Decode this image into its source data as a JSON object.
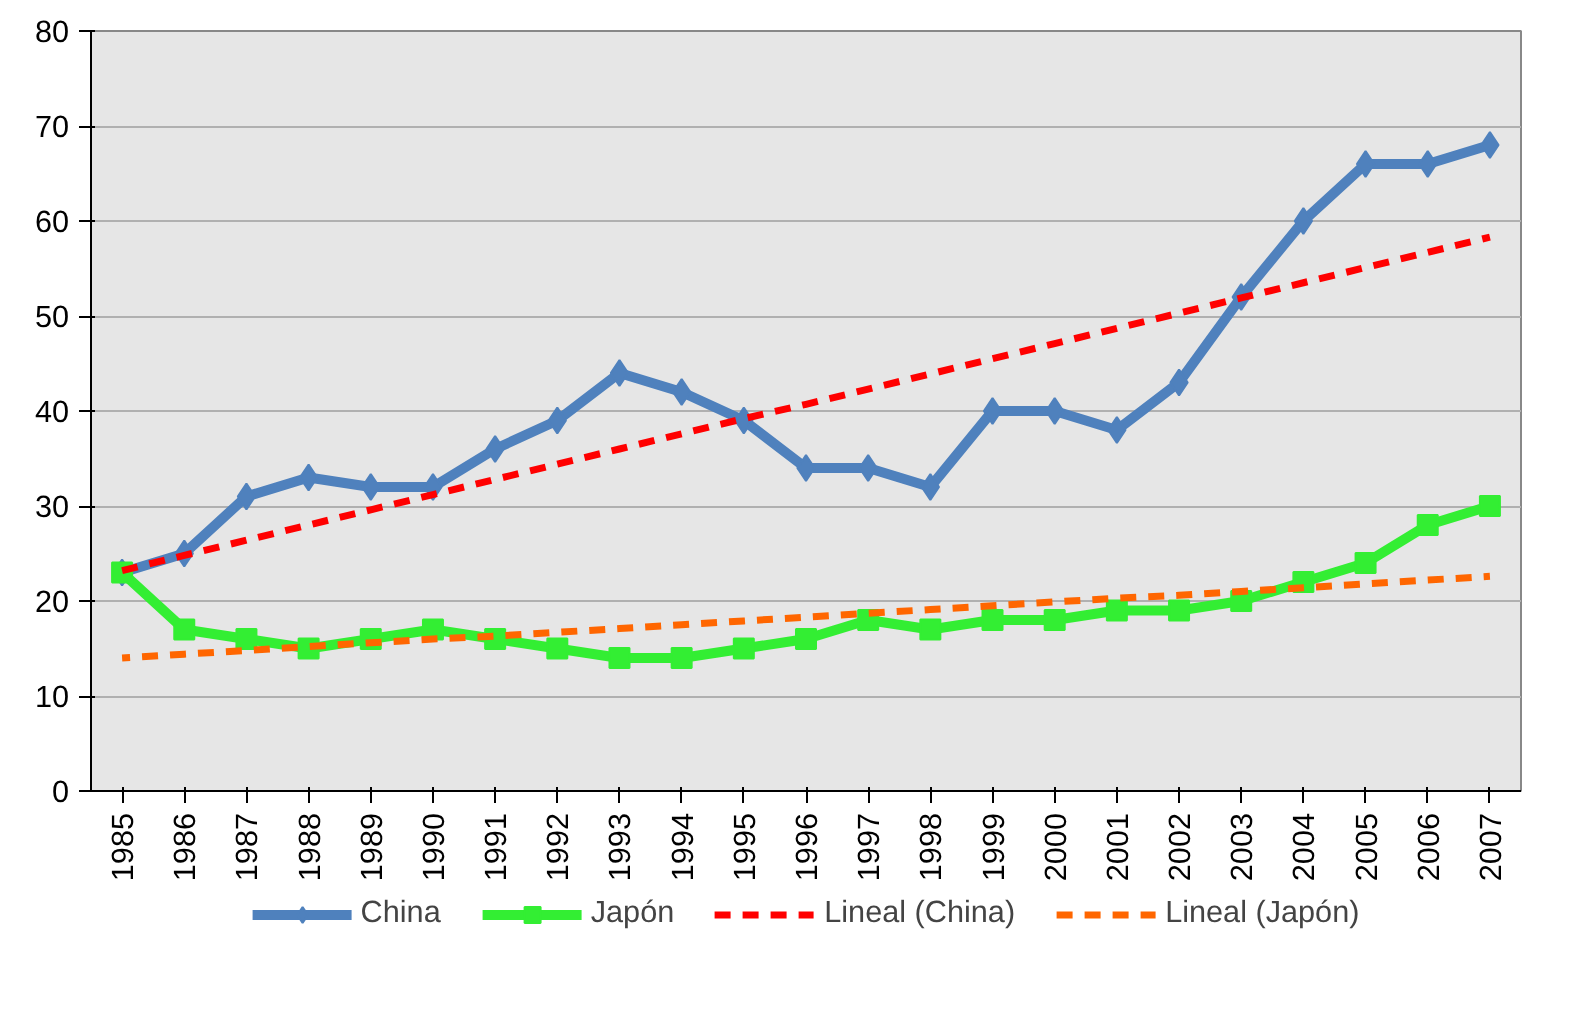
{
  "chart_data": {
    "type": "line",
    "categories": [
      "1985",
      "1986",
      "1987",
      "1988",
      "1989",
      "1990",
      "1991",
      "1992",
      "1993",
      "1994",
      "1995",
      "1996",
      "1997",
      "1998",
      "1999",
      "2000",
      "2001",
      "2002",
      "2003",
      "2004",
      "2005",
      "2006",
      "2007"
    ],
    "ylim": [
      0,
      80
    ],
    "yticks": [
      0,
      10,
      20,
      30,
      40,
      50,
      60,
      70,
      80
    ],
    "grid": "y",
    "legend": "bottom",
    "series": [
      {
        "name": "China",
        "color": "#4f81bd",
        "marker": "diamond",
        "line_style": "solid",
        "values": [
          23,
          25,
          31,
          33,
          32,
          32,
          36,
          39,
          44,
          42,
          39,
          34,
          34,
          32,
          40,
          40,
          38,
          43,
          52,
          60,
          66,
          66,
          68
        ]
      },
      {
        "name": "Japón",
        "color": "#33ee33",
        "marker": "square",
        "line_style": "solid",
        "values": [
          23,
          17,
          16,
          15,
          16,
          17,
          16,
          15,
          14,
          14,
          15,
          16,
          18,
          17,
          18,
          18,
          19,
          19,
          20,
          22,
          24,
          28,
          30
        ]
      },
      {
        "name": "Lineal (China)",
        "color": "#ff0000",
        "marker": "none",
        "line_style": "dashed",
        "values": [
          23.2,
          24.8,
          26.4,
          28.0,
          29.6,
          31.2,
          32.8,
          34.4,
          36.0,
          37.6,
          39.2,
          40.7,
          42.3,
          43.9,
          45.5,
          47.1,
          48.7,
          50.3,
          51.9,
          53.5,
          55.1,
          56.7,
          58.3
        ]
      },
      {
        "name": "Lineal (Japón)",
        "color": "#ff6600",
        "marker": "none",
        "line_style": "dashed",
        "values": [
          14.0,
          14.4,
          14.8,
          15.2,
          15.6,
          16.0,
          16.3,
          16.7,
          17.1,
          17.5,
          17.9,
          18.3,
          18.7,
          19.1,
          19.5,
          19.9,
          20.3,
          20.6,
          21.0,
          21.4,
          21.8,
          22.2,
          22.6
        ]
      }
    ]
  }
}
